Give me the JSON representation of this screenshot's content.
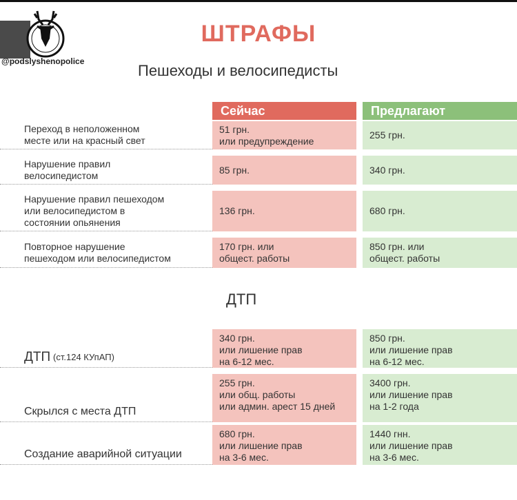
{
  "header": {
    "handle": "@podslyshenopolice",
    "title": "ШТРАФЫ",
    "subtitle": "Пешеходы и велосипедисты"
  },
  "columns": {
    "now": "Сейчас",
    "proposed": "Предлагают"
  },
  "colors": {
    "now_header": "#e06a5e",
    "now_cell": "#f4c3bd",
    "proposed_header": "#8cc07a",
    "proposed_cell": "#d8ecd1"
  },
  "pedestrians": [
    {
      "label": "Переход в неположенном\nместе или на красный свет",
      "now": "51 грн.\nили предупреждение",
      "proposed": "255 грн."
    },
    {
      "label": "Нарушение правил\nвелосипедистом",
      "now": "85 грн.",
      "proposed": "340 грн."
    },
    {
      "label": "Нарушение правил пешеходом\nили велосипедистом в\nсостоянии опьянения",
      "now": "136 грн.",
      "proposed": "680 грн."
    },
    {
      "label": "Повторное нарушение\nпешеходом или велосипедистом",
      "now": "170 грн. или\nобщест. работы",
      "proposed": "850 грн. или\nобщест. работы"
    }
  ],
  "dtp_heading": "ДТП",
  "dtp": [
    {
      "label": "ДТП",
      "label_note": "(ст.124 КУпАП)",
      "now": "340 грн.\nили лишение прав\nна 6-12 мес.",
      "proposed": "850 грн.\nили лишение прав\nна 6-12 мес."
    },
    {
      "label": "Скрылся с места ДТП",
      "now": "255 грн.\nили общ. работы\nили админ. арест 15 дней",
      "proposed": "3400 грн.\nили лишение прав\nна 1-2 года"
    },
    {
      "label": "Создание аварийной ситуации",
      "now": "680 грн.\nили лишение прав\nна 3-6 мес.",
      "proposed": "1440 гнн.\nили лишение прав\nна 3-6 мес."
    }
  ]
}
